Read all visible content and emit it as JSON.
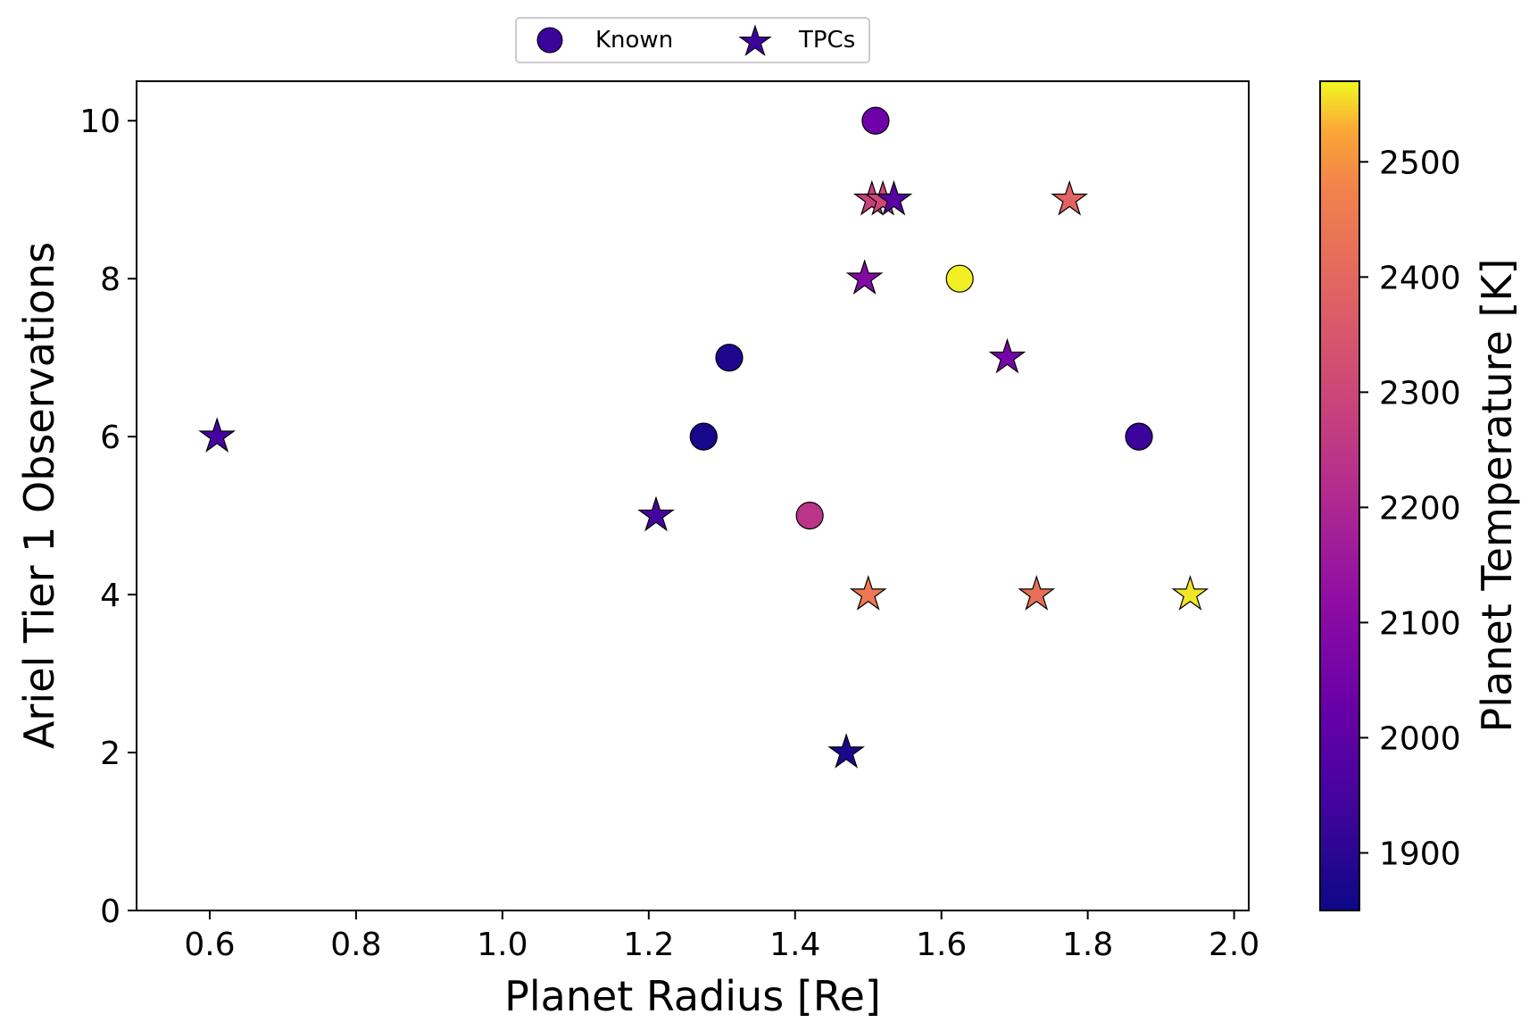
{
  "chart_data": {
    "type": "scatter",
    "xlabel": "Planet Radius [Re]",
    "ylabel": "Ariel Tier 1 Observations",
    "xlim": [
      0.5,
      2.02
    ],
    "ylim": [
      0,
      10.5
    ],
    "x_ticks": [
      0.6,
      0.8,
      1.0,
      1.2,
      1.4,
      1.6,
      1.8,
      2.0
    ],
    "y_ticks": [
      0,
      2,
      4,
      6,
      8,
      10
    ],
    "colorbar": {
      "label": "Planet Temperature [K]",
      "colormap": "plasma",
      "range": [
        1850,
        2570
      ],
      "ticks": [
        1900,
        2000,
        2100,
        2200,
        2300,
        2400,
        2500
      ]
    },
    "legend": {
      "placement": "top-center, outside plot",
      "entries": [
        {
          "label": "Known",
          "marker": "circle"
        },
        {
          "label": "TPCs",
          "marker": "star"
        }
      ]
    },
    "series": [
      {
        "name": "Known",
        "marker": "circle",
        "points": [
          {
            "x": 1.51,
            "y": 10,
            "temp": 2040
          },
          {
            "x": 1.625,
            "y": 8,
            "temp": 2565
          },
          {
            "x": 1.31,
            "y": 7,
            "temp": 1880
          },
          {
            "x": 1.275,
            "y": 6,
            "temp": 1870
          },
          {
            "x": 1.87,
            "y": 6,
            "temp": 1930
          },
          {
            "x": 1.42,
            "y": 5,
            "temp": 2240
          }
        ]
      },
      {
        "name": "TPCs",
        "marker": "star",
        "points": [
          {
            "x": 1.505,
            "y": 9,
            "temp": 2280
          },
          {
            "x": 1.52,
            "y": 9,
            "temp": 2300
          },
          {
            "x": 1.535,
            "y": 9,
            "temp": 1990
          },
          {
            "x": 1.775,
            "y": 9,
            "temp": 2390
          },
          {
            "x": 1.495,
            "y": 8,
            "temp": 2090
          },
          {
            "x": 1.69,
            "y": 7,
            "temp": 2060
          },
          {
            "x": 0.61,
            "y": 6,
            "temp": 1950
          },
          {
            "x": 1.21,
            "y": 5,
            "temp": 1950
          },
          {
            "x": 1.5,
            "y": 4,
            "temp": 2450
          },
          {
            "x": 1.73,
            "y": 4,
            "temp": 2420
          },
          {
            "x": 1.94,
            "y": 4,
            "temp": 2560
          },
          {
            "x": 1.47,
            "y": 2,
            "temp": 1870
          }
        ]
      }
    ]
  }
}
